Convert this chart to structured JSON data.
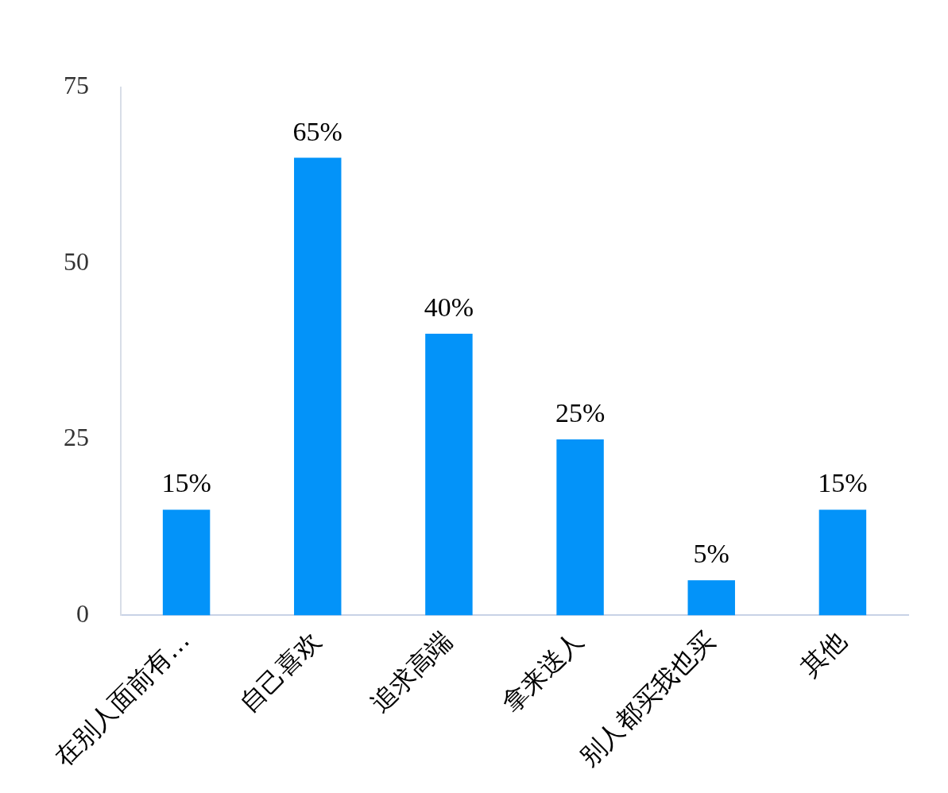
{
  "chart_data": {
    "type": "bar",
    "categories": [
      "在别人面前有…",
      "自己喜欢",
      "追求高端",
      "拿来送人",
      "别人都买我也买",
      "其他"
    ],
    "values": [
      15,
      65,
      40,
      25,
      5,
      15
    ],
    "value_labels": [
      "15%",
      "65%",
      "40%",
      "25%",
      "5%",
      "15%"
    ],
    "color": "#0393f9",
    "ylim": [
      0,
      75
    ],
    "yticks": [
      0,
      25,
      50,
      75
    ],
    "grid": false,
    "legend": false
  }
}
